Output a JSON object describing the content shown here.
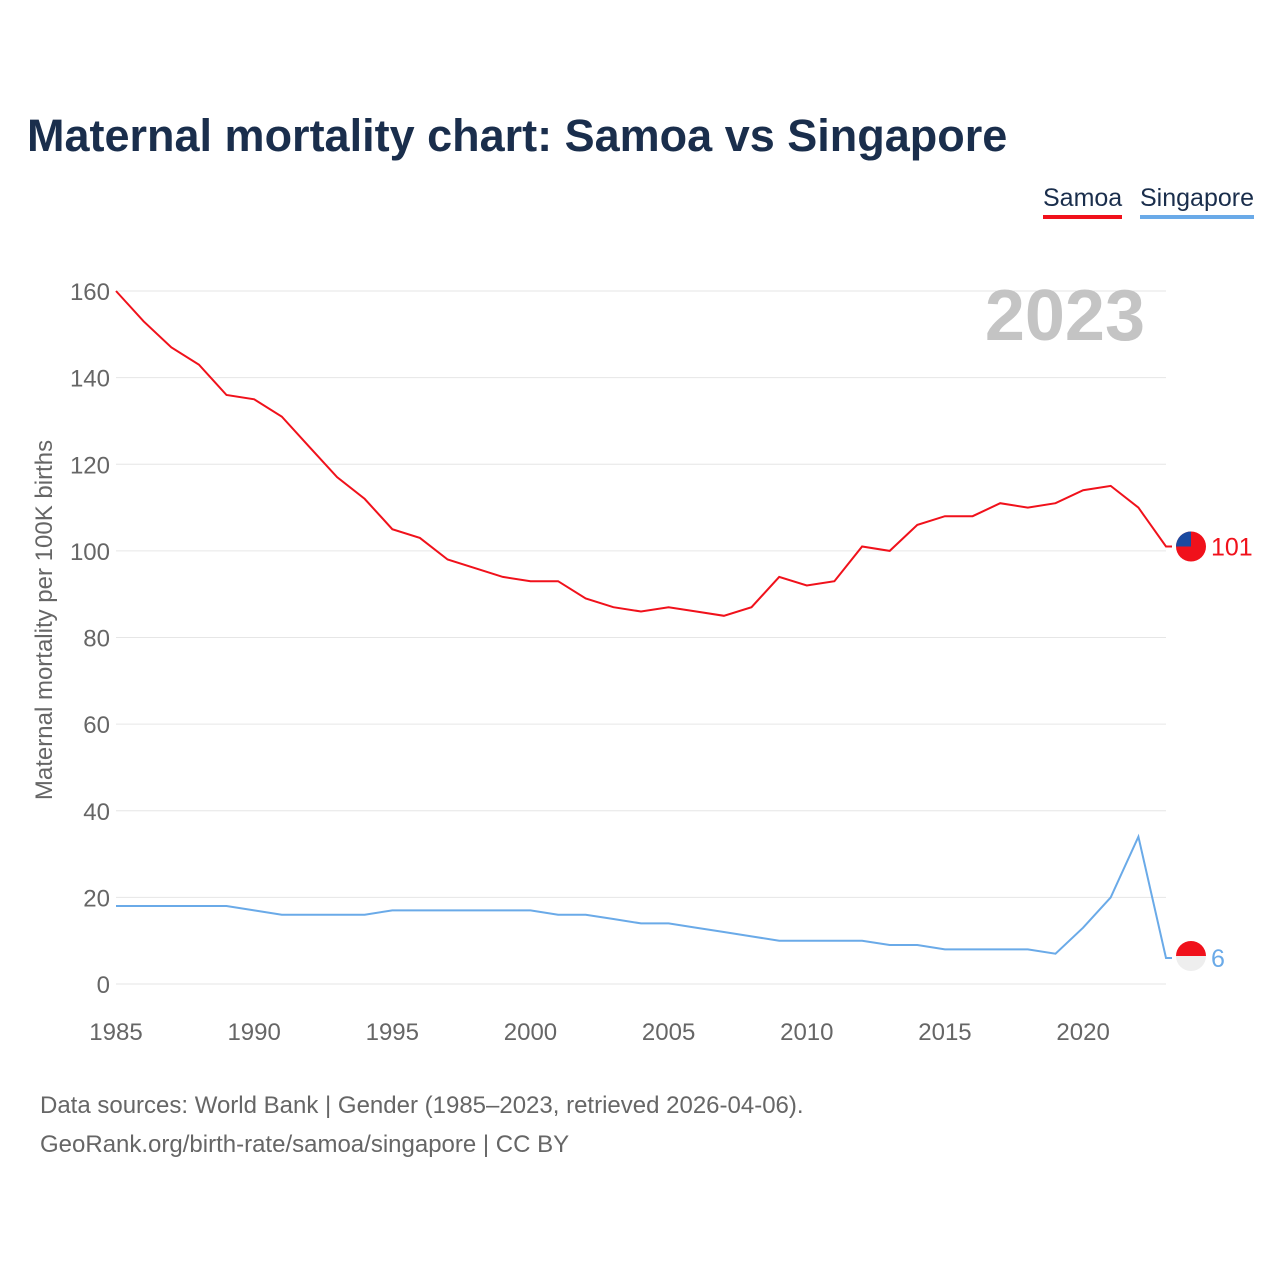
{
  "title": "Maternal mortality chart: Samoa vs Singapore",
  "footer": {
    "line1": "Data sources: World Bank | Gender (1985–2023, retrieved 2026-04-06).",
    "line2": "GeoRank.org/birth-rate/samoa/singapore | CC BY"
  },
  "chart_data": {
    "type": "line",
    "title": "Maternal mortality chart: Samoa vs Singapore",
    "ylabel": "Maternal mortality per 100K births",
    "xlabel": "",
    "year_label": "2023",
    "ylim": [
      0,
      160
    ],
    "xlim": [
      1985,
      2023
    ],
    "yticks": [
      0,
      20,
      40,
      60,
      80,
      100,
      120,
      140,
      160
    ],
    "xticks": [
      1985,
      1990,
      1995,
      2000,
      2005,
      2010,
      2015,
      2020
    ],
    "grid": true,
    "legend_position": "top-right",
    "x": [
      1985,
      1986,
      1987,
      1988,
      1989,
      1990,
      1991,
      1992,
      1993,
      1994,
      1995,
      1996,
      1997,
      1998,
      1999,
      2000,
      2001,
      2002,
      2003,
      2004,
      2005,
      2006,
      2007,
      2008,
      2009,
      2010,
      2011,
      2012,
      2013,
      2014,
      2015,
      2016,
      2017,
      2018,
      2019,
      2020,
      2021,
      2022,
      2023
    ],
    "series": [
      {
        "name": "Samoa",
        "color": "#f0111b",
        "end_label": "101",
        "values": [
          160,
          153,
          147,
          143,
          136,
          135,
          131,
          124,
          117,
          112,
          105,
          103,
          98,
          96,
          94,
          93,
          93,
          89,
          87,
          86,
          87,
          86,
          85,
          87,
          94,
          92,
          93,
          101,
          100,
          106,
          108,
          108,
          111,
          110,
          111,
          114,
          115,
          110,
          101
        ]
      },
      {
        "name": "Singapore",
        "color": "#6aaae8",
        "end_label": "6",
        "values": [
          18,
          18,
          18,
          18,
          18,
          17,
          16,
          16,
          16,
          16,
          17,
          17,
          17,
          17,
          17,
          17,
          16,
          16,
          15,
          14,
          14,
          13,
          12,
          11,
          10,
          10,
          10,
          10,
          9,
          9,
          8,
          8,
          8,
          8,
          7,
          13,
          20,
          34,
          6
        ]
      }
    ]
  }
}
